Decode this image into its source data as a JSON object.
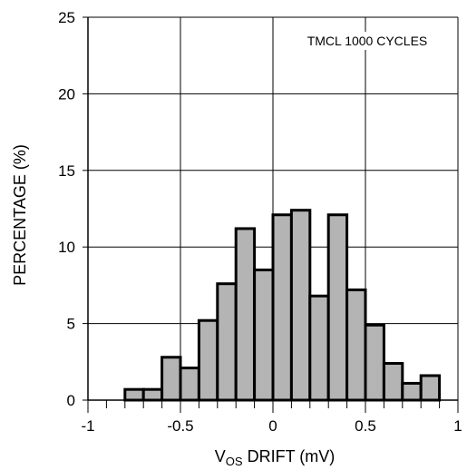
{
  "chart_data": {
    "type": "bar",
    "subtype": "histogram",
    "bin_width": 0.1,
    "bin_starts": [
      -0.8,
      -0.7,
      -0.6,
      -0.5,
      -0.4,
      -0.3,
      -0.2,
      -0.1,
      0.0,
      0.1,
      0.2,
      0.3,
      0.4,
      0.5,
      0.6,
      0.7,
      0.8
    ],
    "values": [
      0.7,
      0.7,
      2.8,
      2.1,
      5.2,
      7.6,
      11.2,
      8.5,
      12.1,
      12.4,
      6.8,
      12.1,
      7.2,
      4.9,
      2.4,
      1.1,
      1.6
    ],
    "bar_color": "#b4b4b4",
    "bar_edge_color": "#000000",
    "xlim": [
      -1,
      1
    ],
    "ylim": [
      0,
      25
    ],
    "x_ticks": [
      "-1",
      "-0.5",
      "0",
      "0.5",
      "1"
    ],
    "x_tick_values": [
      -1,
      -0.5,
      0,
      0.5,
      1
    ],
    "y_ticks": [
      "0",
      "5",
      "10",
      "15",
      "20",
      "25"
    ],
    "y_tick_values": [
      0,
      5,
      10,
      15,
      20,
      25
    ],
    "xlabel": {
      "prefix": "V",
      "subscript": "OS",
      "suffix": " DRIFT (mV)"
    },
    "ylabel": "PERCENTAGE (%)",
    "annotation": "TMCL 1000 CYCLES",
    "grid": true
  }
}
